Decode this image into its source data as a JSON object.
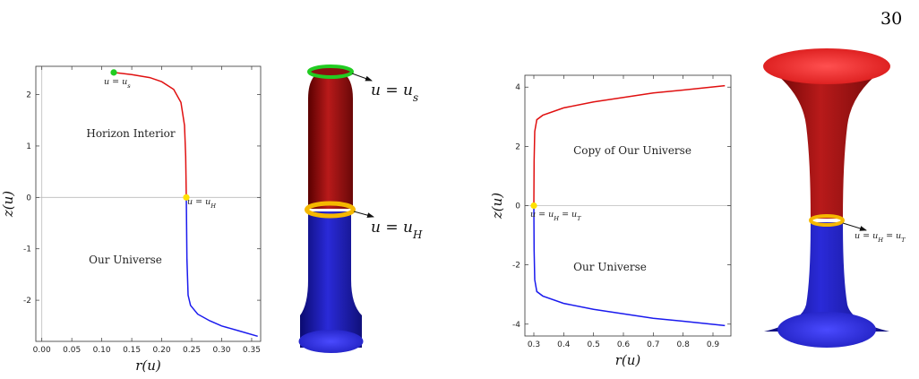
{
  "page_number": "30",
  "chart_data": [
    {
      "type": "line",
      "xlabel": "r(u)",
      "ylabel": "z(u)",
      "xlim": [
        -0.01,
        0.365
      ],
      "ylim": [
        -2.8,
        2.55
      ],
      "xticks": [
        "0.00",
        "0.05",
        "0.10",
        "0.15",
        "0.20",
        "0.25",
        "0.30",
        "0.35"
      ],
      "yticks": [
        "-2",
        "-1",
        "0",
        "1",
        "2"
      ],
      "grid": false,
      "series": [
        {
          "color": "#e01010",
          "x": [
            0.12,
            0.15,
            0.18,
            0.2,
            0.22,
            0.232,
            0.238,
            0.24,
            0.241
          ],
          "y": [
            2.43,
            2.39,
            2.33,
            2.25,
            2.1,
            1.85,
            1.4,
            0.8,
            0.0
          ]
        },
        {
          "color": "#1a1aee",
          "x": [
            0.241,
            0.242,
            0.244,
            0.248,
            0.26,
            0.28,
            0.3,
            0.33,
            0.36
          ],
          "y": [
            0.0,
            -1.2,
            -1.9,
            -2.1,
            -2.27,
            -2.4,
            -2.5,
            -2.6,
            -2.7
          ]
        }
      ],
      "points": [
        {
          "label": "u = u_s",
          "x": 0.12,
          "y": 2.43,
          "color": "#22cc22"
        },
        {
          "label": "u = u_H",
          "x": 0.241,
          "y": 0.0,
          "color": "#ffe000"
        }
      ],
      "annotations": [
        "Horizon Interior",
        "Our Universe"
      ]
    },
    {
      "type": "line",
      "xlabel": "r(u)",
      "ylabel": "z(u)",
      "xlim": [
        0.27,
        0.96
      ],
      "ylim": [
        -4.4,
        4.4
      ],
      "xticks": [
        "0.3",
        "0.4",
        "0.5",
        "0.6",
        "0.7",
        "0.8",
        "0.9"
      ],
      "yticks": [
        "-4",
        "-2",
        "0",
        "2",
        "4"
      ],
      "grid": false,
      "series": [
        {
          "color": "#e01010",
          "x": [
            0.3,
            0.301,
            0.303,
            0.31,
            0.33,
            0.4,
            0.5,
            0.6,
            0.7,
            0.8,
            0.94
          ],
          "y": [
            0.0,
            1.5,
            2.5,
            2.9,
            3.05,
            3.3,
            3.5,
            3.65,
            3.8,
            3.9,
            4.05
          ]
        },
        {
          "color": "#1a1aee",
          "x": [
            0.3,
            0.301,
            0.303,
            0.31,
            0.33,
            0.4,
            0.5,
            0.6,
            0.7,
            0.8,
            0.94
          ],
          "y": [
            0.0,
            -1.5,
            -2.5,
            -2.9,
            -3.05,
            -3.3,
            -3.5,
            -3.65,
            -3.8,
            -3.9,
            -4.05
          ]
        }
      ],
      "points": [
        {
          "label": "u = u_H = u_T",
          "x": 0.3,
          "y": 0.0,
          "color": "#ffe000"
        }
      ],
      "annotations": [
        "Copy of Our Universe",
        "Our Universe"
      ]
    }
  ],
  "figure_labels": {
    "left_top": "u = u_s",
    "left_mid": "u = u_H",
    "right_mid": "u = u_H = u_T"
  }
}
